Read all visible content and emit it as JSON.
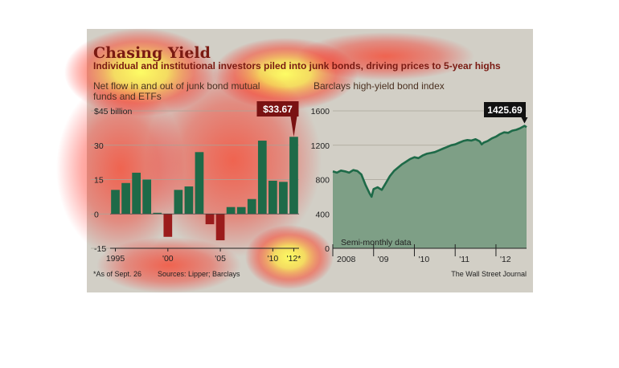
{
  "title": "Chasing Yield",
  "subtitle": "Individual and institutional investors piled into junk bonds, driving prices to 5-year highs",
  "footer": {
    "note": "*As of Sept. 26",
    "sources": "Sources: Lipper; Barclays",
    "credit": "The Wall Street Journal"
  },
  "colors": {
    "positive_bar": "#1e6a48",
    "negative_bar": "#9b1c1c",
    "line": "#1e6a48",
    "area": "#7e9f86",
    "callout_left_bg": "#7a1212",
    "callout_right_bg": "#111111"
  },
  "chart_data": [
    {
      "type": "bar",
      "title_lines": [
        "Net flow in and out of junk bond mutual",
        "funds and ETFs"
      ],
      "yunit_label": "$45 billion",
      "ylim": [
        -15,
        45
      ],
      "yticks": [
        -15,
        0,
        15,
        30,
        45
      ],
      "ytick_labels": [
        "-15",
        "0",
        "15",
        "30",
        "$45 billion"
      ],
      "x_tick_labels": [
        "1995",
        "'00",
        "'05",
        "'10",
        "'12*"
      ],
      "x_tick_years": [
        1995,
        2000,
        2005,
        2010,
        2012
      ],
      "categories": [
        1995,
        1996,
        1997,
        1998,
        1999,
        2000,
        2001,
        2002,
        2003,
        2004,
        2005,
        2006,
        2007,
        2008,
        2009,
        2010,
        2011,
        2012
      ],
      "values": [
        10.5,
        13.5,
        18,
        15,
        0.5,
        -10,
        10.5,
        12,
        27,
        -4.5,
        -11.5,
        3,
        3,
        6.5,
        32,
        14.5,
        14,
        33.67
      ],
      "callout": "$33.67",
      "grid": true
    },
    {
      "type": "area",
      "title": "Barclays high-yield bond index",
      "ylim": [
        0,
        1600
      ],
      "yticks": [
        0,
        400,
        800,
        1200,
        1600
      ],
      "ytick_labels": [
        "0",
        "400",
        "800",
        "1200",
        "1600"
      ],
      "x_tick_labels": [
        "2008",
        "'09",
        "'10",
        "'11",
        "'12"
      ],
      "x_tick_years": [
        2008,
        2009,
        2010,
        2011,
        2012
      ],
      "xlim": [
        2008.0,
        2012.75
      ],
      "x": [
        2008.0,
        2008.1,
        2008.2,
        2008.3,
        2008.4,
        2008.5,
        2008.6,
        2008.7,
        2008.8,
        2008.9,
        2008.95,
        2009.0,
        2009.1,
        2009.2,
        2009.3,
        2009.4,
        2009.5,
        2009.6,
        2009.7,
        2009.8,
        2009.9,
        2010.0,
        2010.1,
        2010.2,
        2010.3,
        2010.4,
        2010.5,
        2010.6,
        2010.7,
        2010.8,
        2010.9,
        2011.0,
        2011.1,
        2011.2,
        2011.3,
        2011.4,
        2011.5,
        2011.6,
        2011.65,
        2011.7,
        2011.8,
        2011.9,
        2012.0,
        2012.1,
        2012.2,
        2012.3,
        2012.4,
        2012.5,
        2012.6,
        2012.7,
        2012.75
      ],
      "values": [
        895,
        880,
        905,
        895,
        880,
        910,
        900,
        860,
        740,
        640,
        600,
        690,
        710,
        680,
        760,
        840,
        900,
        940,
        980,
        1010,
        1040,
        1060,
        1050,
        1080,
        1100,
        1110,
        1120,
        1140,
        1160,
        1180,
        1200,
        1210,
        1230,
        1250,
        1260,
        1255,
        1270,
        1245,
        1210,
        1230,
        1250,
        1280,
        1300,
        1330,
        1350,
        1345,
        1370,
        1380,
        1400,
        1425.69,
        1410
      ],
      "callout": "1425.69",
      "annotation": "Semi-monthly data",
      "grid": true
    }
  ]
}
